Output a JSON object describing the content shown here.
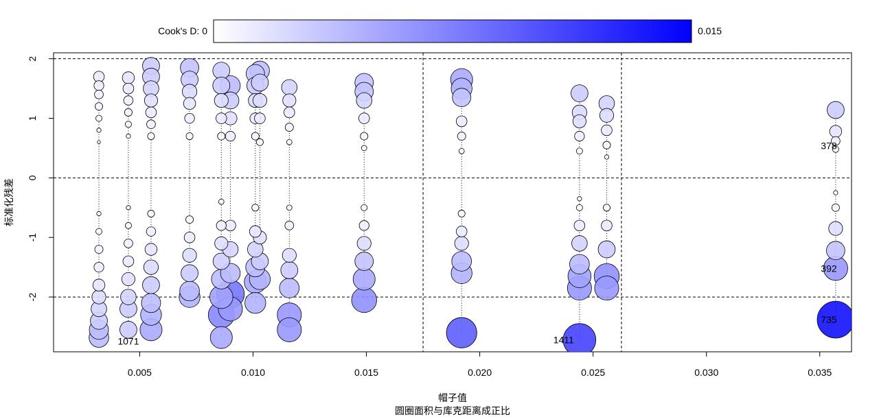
{
  "chart_data": {
    "type": "scatter",
    "title": "",
    "xlabel": "帽子值",
    "xlabel_sub": "圆圈面积与库克距离成正比",
    "ylabel": "标准化残差",
    "xlim": [
      0.0012,
      0.0364
    ],
    "ylim": [
      -2.92,
      2.1
    ],
    "xticks": [
      0.005,
      0.01,
      0.015,
      0.02,
      0.025,
      0.03,
      0.035
    ],
    "xtick_labels": [
      "0.005",
      "0.010",
      "0.015",
      "0.020",
      "0.025",
      "0.030",
      "0.035"
    ],
    "yticks": [
      2,
      1,
      0,
      -1,
      -2
    ],
    "ytick_labels": [
      "2",
      "1",
      "0",
      "-1",
      "-2"
    ],
    "reference_lines": {
      "horizontal": [
        2,
        0,
        -2
      ],
      "vertical": [
        0.0175,
        0.02625
      ]
    },
    "colorbar": {
      "label": "Cook's D: 0",
      "max_label": "0.015",
      "min": 0,
      "max": 0.015,
      "color_low": "#ffffff",
      "color_high": "#0000ff"
    },
    "annotations": [
      {
        "text": "1071",
        "x": 0.0045,
        "y": -2.74
      },
      {
        "text": "1411",
        "x": 0.0237,
        "y": -2.72
      },
      {
        "text": "378",
        "x": 0.0354,
        "y": 0.54
      },
      {
        "text": "392",
        "x": 0.0354,
        "y": -1.52
      },
      {
        "text": "735",
        "x": 0.0354,
        "y": -2.38
      }
    ],
    "points": [
      {
        "x": 0.0032,
        "y": 1.7,
        "d": 0.0012
      },
      {
        "x": 0.0032,
        "y": 1.55,
        "d": 0.001
      },
      {
        "x": 0.0032,
        "y": 1.4,
        "d": 0.0008
      },
      {
        "x": 0.0032,
        "y": 1.2,
        "d": 0.0006
      },
      {
        "x": 0.0032,
        "y": 1.0,
        "d": 0.0004
      },
      {
        "x": 0.0032,
        "y": 0.8,
        "d": 0.0002
      },
      {
        "x": 0.0032,
        "y": 0.6,
        "d": 0.0001
      },
      {
        "x": 0.0032,
        "y": -0.6,
        "d": 0.0002
      },
      {
        "x": 0.0032,
        "y": -0.9,
        "d": 0.0004
      },
      {
        "x": 0.0032,
        "y": -1.2,
        "d": 0.0007
      },
      {
        "x": 0.0032,
        "y": -1.5,
        "d": 0.001
      },
      {
        "x": 0.0032,
        "y": -1.8,
        "d": 0.0015
      },
      {
        "x": 0.0032,
        "y": -2.0,
        "d": 0.002
      },
      {
        "x": 0.0032,
        "y": -2.2,
        "d": 0.0025
      },
      {
        "x": 0.0032,
        "y": -2.4,
        "d": 0.003
      },
      {
        "x": 0.0032,
        "y": -2.55,
        "d": 0.0038
      },
      {
        "x": 0.0032,
        "y": -2.68,
        "d": 0.004
      },
      {
        "x": 0.0045,
        "y": 1.68,
        "d": 0.0015
      },
      {
        "x": 0.0045,
        "y": 1.5,
        "d": 0.0012
      },
      {
        "x": 0.0045,
        "y": 1.3,
        "d": 0.0009
      },
      {
        "x": 0.0045,
        "y": 1.1,
        "d": 0.0006
      },
      {
        "x": 0.0045,
        "y": 0.9,
        "d": 0.0004
      },
      {
        "x": 0.0045,
        "y": 0.7,
        "d": 0.0002
      },
      {
        "x": 0.0045,
        "y": -0.5,
        "d": 0.0002
      },
      {
        "x": 0.0045,
        "y": -0.8,
        "d": 0.0004
      },
      {
        "x": 0.0045,
        "y": -1.1,
        "d": 0.0008
      },
      {
        "x": 0.0045,
        "y": -1.4,
        "d": 0.0012
      },
      {
        "x": 0.0045,
        "y": -1.7,
        "d": 0.0018
      },
      {
        "x": 0.0045,
        "y": -2.0,
        "d": 0.0025
      },
      {
        "x": 0.0045,
        "y": -2.2,
        "d": 0.003
      },
      {
        "x": 0.0045,
        "y": -2.55,
        "d": 0.003
      },
      {
        "x": 0.0055,
        "y": 1.88,
        "d": 0.003
      },
      {
        "x": 0.0055,
        "y": 1.7,
        "d": 0.003
      },
      {
        "x": 0.0055,
        "y": 1.5,
        "d": 0.0025
      },
      {
        "x": 0.0055,
        "y": 1.3,
        "d": 0.0018
      },
      {
        "x": 0.0055,
        "y": 1.1,
        "d": 0.0012
      },
      {
        "x": 0.0055,
        "y": 0.9,
        "d": 0.0008
      },
      {
        "x": 0.0055,
        "y": 0.7,
        "d": 0.0005
      },
      {
        "x": 0.0055,
        "y": -0.6,
        "d": 0.0005
      },
      {
        "x": 0.0055,
        "y": -0.9,
        "d": 0.0009
      },
      {
        "x": 0.0055,
        "y": -1.2,
        "d": 0.0015
      },
      {
        "x": 0.0055,
        "y": -1.5,
        "d": 0.0022
      },
      {
        "x": 0.0055,
        "y": -1.8,
        "d": 0.003
      },
      {
        "x": 0.0055,
        "y": -2.1,
        "d": 0.0038
      },
      {
        "x": 0.0055,
        "y": -2.3,
        "d": 0.0045
      },
      {
        "x": 0.0055,
        "y": -2.55,
        "d": 0.005
      },
      {
        "x": 0.0072,
        "y": 1.85,
        "d": 0.0035
      },
      {
        "x": 0.0072,
        "y": 1.65,
        "d": 0.003
      },
      {
        "x": 0.0072,
        "y": 1.45,
        "d": 0.0022
      },
      {
        "x": 0.0072,
        "y": 1.25,
        "d": 0.0015
      },
      {
        "x": 0.0072,
        "y": 1.0,
        "d": 0.001
      },
      {
        "x": 0.0072,
        "y": 0.7,
        "d": 0.0005
      },
      {
        "x": 0.0072,
        "y": -0.7,
        "d": 0.0006
      },
      {
        "x": 0.0072,
        "y": -1.0,
        "d": 0.0012
      },
      {
        "x": 0.0072,
        "y": -1.3,
        "d": 0.002
      },
      {
        "x": 0.0072,
        "y": -1.6,
        "d": 0.003
      },
      {
        "x": 0.0072,
        "y": -1.9,
        "d": 0.004
      },
      {
        "x": 0.0072,
        "y": -2.0,
        "d": 0.0045
      },
      {
        "x": 0.0086,
        "y": 1.8,
        "d": 0.003
      },
      {
        "x": 0.0086,
        "y": 1.55,
        "d": 0.003
      },
      {
        "x": 0.0086,
        "y": 1.3,
        "d": 0.002
      },
      {
        "x": 0.0086,
        "y": 1.0,
        "d": 0.0012
      },
      {
        "x": 0.0086,
        "y": 0.7,
        "d": 0.0006
      },
      {
        "x": 0.0086,
        "y": -0.4,
        "d": 0.0003
      },
      {
        "x": 0.0086,
        "y": -0.8,
        "d": 0.001
      },
      {
        "x": 0.0086,
        "y": -1.1,
        "d": 0.0018
      },
      {
        "x": 0.0086,
        "y": -1.4,
        "d": 0.0028
      },
      {
        "x": 0.0086,
        "y": -1.7,
        "d": 0.004
      },
      {
        "x": 0.0086,
        "y": -2.0,
        "d": 0.0055
      },
      {
        "x": 0.0086,
        "y": -2.3,
        "d": 0.007
      },
      {
        "x": 0.0086,
        "y": -2.68,
        "d": 0.005
      },
      {
        "x": 0.009,
        "y": 1.55,
        "d": 0.004
      },
      {
        "x": 0.009,
        "y": 1.3,
        "d": 0.003
      },
      {
        "x": 0.009,
        "y": 1.0,
        "d": 0.0018
      },
      {
        "x": 0.009,
        "y": 0.7,
        "d": 0.001
      },
      {
        "x": 0.009,
        "y": -0.8,
        "d": 0.0012
      },
      {
        "x": 0.009,
        "y": -1.2,
        "d": 0.0025
      },
      {
        "x": 0.009,
        "y": -1.6,
        "d": 0.004
      },
      {
        "x": 0.009,
        "y": -1.95,
        "d": 0.008
      },
      {
        "x": 0.009,
        "y": -2.2,
        "d": 0.006
      },
      {
        "x": 0.0101,
        "y": 1.75,
        "d": 0.0035
      },
      {
        "x": 0.0101,
        "y": 1.55,
        "d": 0.003
      },
      {
        "x": 0.0101,
        "y": 1.3,
        "d": 0.002
      },
      {
        "x": 0.0101,
        "y": 1.0,
        "d": 0.0012
      },
      {
        "x": 0.0101,
        "y": 0.7,
        "d": 0.0006
      },
      {
        "x": 0.0101,
        "y": -0.5,
        "d": 0.0005
      },
      {
        "x": 0.0101,
        "y": -0.9,
        "d": 0.0014
      },
      {
        "x": 0.0101,
        "y": -1.2,
        "d": 0.0025
      },
      {
        "x": 0.0101,
        "y": -1.5,
        "d": 0.0038
      },
      {
        "x": 0.0101,
        "y": -1.75,
        "d": 0.005
      },
      {
        "x": 0.0101,
        "y": -2.1,
        "d": 0.0045
      },
      {
        "x": 0.0103,
        "y": 1.8,
        "d": 0.0038
      },
      {
        "x": 0.0103,
        "y": 1.6,
        "d": 0.003
      },
      {
        "x": 0.0103,
        "y": 1.3,
        "d": 0.002
      },
      {
        "x": 0.0103,
        "y": 1.0,
        "d": 0.0012
      },
      {
        "x": 0.0103,
        "y": 0.6,
        "d": 0.0005
      },
      {
        "x": 0.0103,
        "y": -1.0,
        "d": 0.0018
      },
      {
        "x": 0.0103,
        "y": -1.4,
        "d": 0.003
      },
      {
        "x": 0.0103,
        "y": -1.7,
        "d": 0.0045
      },
      {
        "x": 0.0116,
        "y": 1.52,
        "d": 0.0025
      },
      {
        "x": 0.0116,
        "y": 1.3,
        "d": 0.0018
      },
      {
        "x": 0.0116,
        "y": 1.1,
        "d": 0.0012
      },
      {
        "x": 0.0116,
        "y": 0.85,
        "d": 0.0007
      },
      {
        "x": 0.0116,
        "y": 0.6,
        "d": 0.0003
      },
      {
        "x": 0.0116,
        "y": -0.5,
        "d": 0.0003
      },
      {
        "x": 0.0116,
        "y": -0.8,
        "d": 0.0008
      },
      {
        "x": 0.0116,
        "y": -1.3,
        "d": 0.002
      },
      {
        "x": 0.0116,
        "y": -1.55,
        "d": 0.003
      },
      {
        "x": 0.0116,
        "y": -1.85,
        "d": 0.004
      },
      {
        "x": 0.0116,
        "y": -2.3,
        "d": 0.006
      },
      {
        "x": 0.0116,
        "y": -2.55,
        "d": 0.006
      },
      {
        "x": 0.0149,
        "y": 1.6,
        "d": 0.0035
      },
      {
        "x": 0.0149,
        "y": 1.45,
        "d": 0.0035
      },
      {
        "x": 0.0149,
        "y": 1.3,
        "d": 0.0025
      },
      {
        "x": 0.0149,
        "y": 1.0,
        "d": 0.0012
      },
      {
        "x": 0.0149,
        "y": 0.7,
        "d": 0.0006
      },
      {
        "x": 0.0149,
        "y": 0.5,
        "d": 0.0003
      },
      {
        "x": 0.0149,
        "y": -0.5,
        "d": 0.0004
      },
      {
        "x": 0.0149,
        "y": -0.8,
        "d": 0.001
      },
      {
        "x": 0.0149,
        "y": -1.1,
        "d": 0.002
      },
      {
        "x": 0.0149,
        "y": -1.4,
        "d": 0.0035
      },
      {
        "x": 0.0149,
        "y": -1.7,
        "d": 0.005
      },
      {
        "x": 0.0149,
        "y": -2.05,
        "d": 0.0065
      },
      {
        "x": 0.0192,
        "y": 1.65,
        "d": 0.005
      },
      {
        "x": 0.0192,
        "y": 1.5,
        "d": 0.0045
      },
      {
        "x": 0.0192,
        "y": 1.35,
        "d": 0.0035
      },
      {
        "x": 0.0192,
        "y": 0.95,
        "d": 0.0012
      },
      {
        "x": 0.0192,
        "y": 0.7,
        "d": 0.0007
      },
      {
        "x": 0.0192,
        "y": 0.45,
        "d": 0.0003
      },
      {
        "x": 0.0192,
        "y": -0.6,
        "d": 0.0005
      },
      {
        "x": 0.0192,
        "y": -0.9,
        "d": 0.0012
      },
      {
        "x": 0.0192,
        "y": -1.1,
        "d": 0.002
      },
      {
        "x": 0.0192,
        "y": -1.4,
        "d": 0.004
      },
      {
        "x": 0.0192,
        "y": -1.6,
        "d": 0.0045
      },
      {
        "x": 0.0192,
        "y": -2.6,
        "d": 0.0095
      },
      {
        "x": 0.0244,
        "y": 1.42,
        "d": 0.003
      },
      {
        "x": 0.0244,
        "y": 1.1,
        "d": 0.0022
      },
      {
        "x": 0.0244,
        "y": 0.95,
        "d": 0.0018
      },
      {
        "x": 0.0244,
        "y": 0.7,
        "d": 0.001
      },
      {
        "x": 0.0244,
        "y": 0.45,
        "d": 0.0004
      },
      {
        "x": 0.0244,
        "y": -0.35,
        "d": 0.0002
      },
      {
        "x": 0.0244,
        "y": -0.5,
        "d": 0.0004
      },
      {
        "x": 0.0244,
        "y": -0.8,
        "d": 0.0012
      },
      {
        "x": 0.0244,
        "y": -1.1,
        "d": 0.0025
      },
      {
        "x": 0.0244,
        "y": -1.45,
        "d": 0.004
      },
      {
        "x": 0.0244,
        "y": -1.65,
        "d": 0.0055
      },
      {
        "x": 0.0244,
        "y": -1.85,
        "d": 0.006
      },
      {
        "x": 0.0244,
        "y": -2.72,
        "d": 0.011
      },
      {
        "x": 0.0256,
        "y": 1.25,
        "d": 0.0025
      },
      {
        "x": 0.0256,
        "y": 1.05,
        "d": 0.002
      },
      {
        "x": 0.0256,
        "y": 0.8,
        "d": 0.0012
      },
      {
        "x": 0.0256,
        "y": 0.55,
        "d": 0.0006
      },
      {
        "x": 0.0256,
        "y": 0.35,
        "d": 0.0002
      },
      {
        "x": 0.0256,
        "y": -0.5,
        "d": 0.0005
      },
      {
        "x": 0.0256,
        "y": -0.8,
        "d": 0.0012
      },
      {
        "x": 0.0256,
        "y": -1.2,
        "d": 0.003
      },
      {
        "x": 0.0256,
        "y": -1.65,
        "d": 0.0065
      },
      {
        "x": 0.0256,
        "y": -1.85,
        "d": 0.006
      },
      {
        "x": 0.0357,
        "y": 1.14,
        "d": 0.003
      },
      {
        "x": 0.0357,
        "y": 0.78,
        "d": 0.0015
      },
      {
        "x": 0.0357,
        "y": 0.62,
        "d": 0.0008
      },
      {
        "x": 0.0357,
        "y": 0.48,
        "d": 0.0004
      },
      {
        "x": 0.0357,
        "y": -0.25,
        "d": 0.0002
      },
      {
        "x": 0.0357,
        "y": -0.5,
        "d": 0.0006
      },
      {
        "x": 0.0357,
        "y": -0.85,
        "d": 0.002
      },
      {
        "x": 0.0357,
        "y": -1.22,
        "d": 0.0035
      },
      {
        "x": 0.0357,
        "y": -1.52,
        "d": 0.006
      },
      {
        "x": 0.0357,
        "y": -2.38,
        "d": 0.014
      }
    ]
  }
}
